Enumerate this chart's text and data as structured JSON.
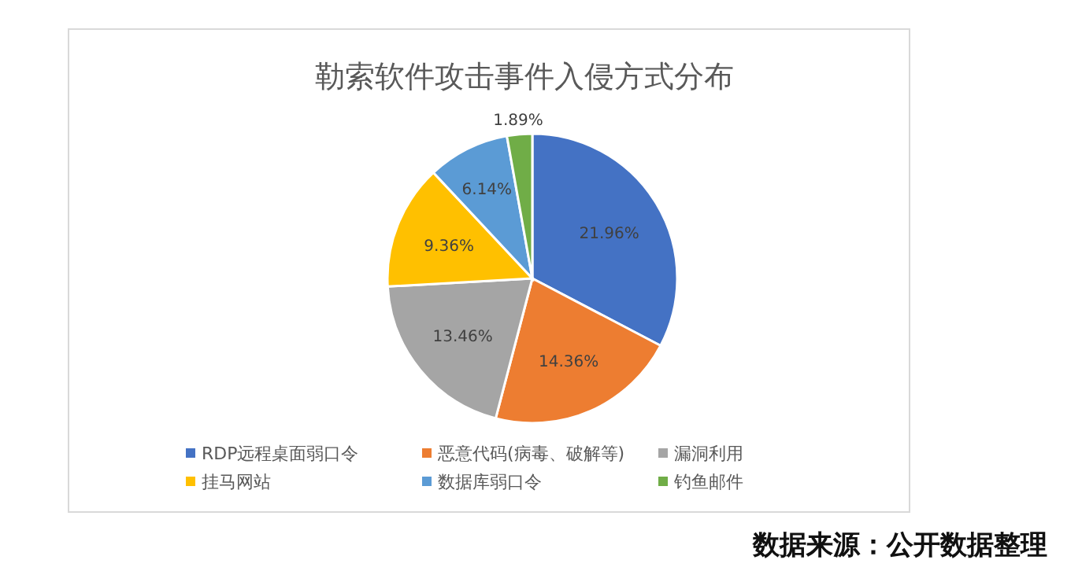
{
  "chart_data": {
    "type": "pie",
    "title": "勒索软件攻击事件入侵方式分布",
    "categories": [
      "RDP远程桌面弱口令",
      "恶意代码(病毒、破解等)",
      "漏洞利用",
      "挂马网站",
      "数据库弱口令",
      "钓鱼邮件"
    ],
    "values": [
      21.96,
      14.36,
      13.46,
      9.36,
      6.14,
      1.89
    ],
    "colors": [
      "#4472c4",
      "#ed7d31",
      "#a5a5a5",
      "#ffc000",
      "#5b9bd5",
      "#70ad47"
    ],
    "value_labels": [
      "21.96%",
      "14.36%",
      "13.46%",
      "9.36%",
      "6.14%",
      "1.89%"
    ],
    "legend": "bottom",
    "annotations": [
      "数据来源：公开数据整理"
    ]
  }
}
